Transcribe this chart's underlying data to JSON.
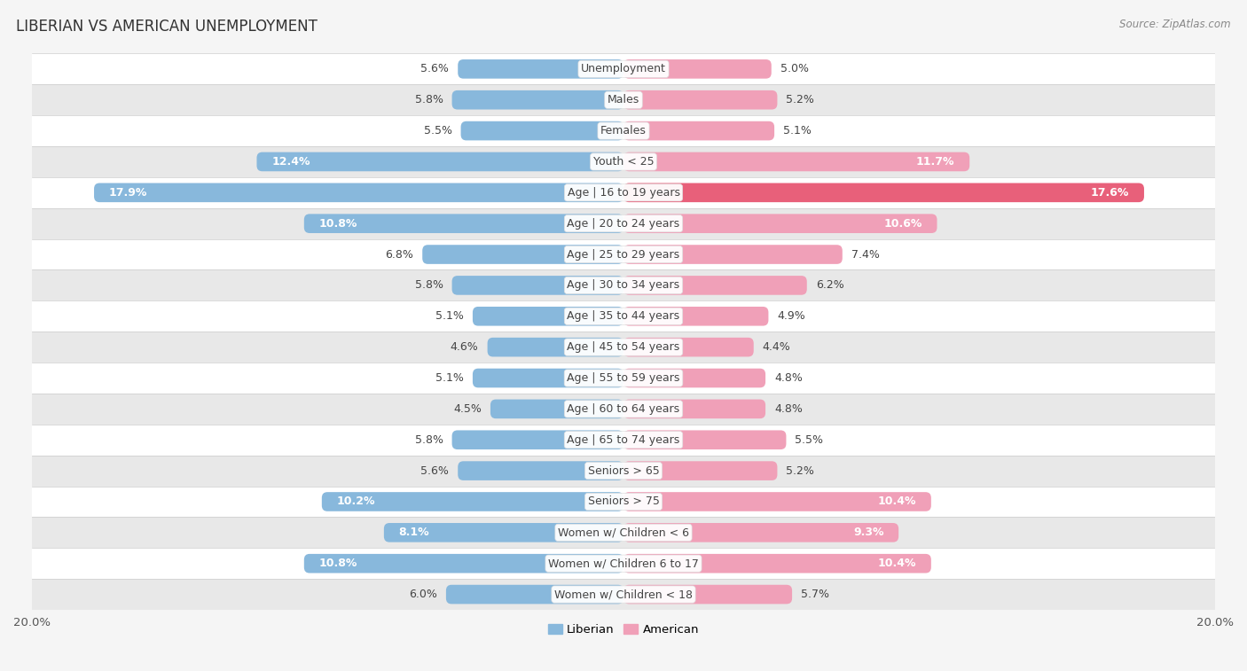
{
  "title": "LIBERIAN VS AMERICAN UNEMPLOYMENT",
  "source": "Source: ZipAtlas.com",
  "categories": [
    "Unemployment",
    "Males",
    "Females",
    "Youth < 25",
    "Age | 16 to 19 years",
    "Age | 20 to 24 years",
    "Age | 25 to 29 years",
    "Age | 30 to 34 years",
    "Age | 35 to 44 years",
    "Age | 45 to 54 years",
    "Age | 55 to 59 years",
    "Age | 60 to 64 years",
    "Age | 65 to 74 years",
    "Seniors > 65",
    "Seniors > 75",
    "Women w/ Children < 6",
    "Women w/ Children 6 to 17",
    "Women w/ Children < 18"
  ],
  "liberian": [
    5.6,
    5.8,
    5.5,
    12.4,
    17.9,
    10.8,
    6.8,
    5.8,
    5.1,
    4.6,
    5.1,
    4.5,
    5.8,
    5.6,
    10.2,
    8.1,
    10.8,
    6.0
  ],
  "american": [
    5.0,
    5.2,
    5.1,
    11.7,
    17.6,
    10.6,
    7.4,
    6.2,
    4.9,
    4.4,
    4.8,
    4.8,
    5.5,
    5.2,
    10.4,
    9.3,
    10.4,
    5.7
  ],
  "liberian_color": "#88B8DC",
  "american_color": "#F0A0B8",
  "american_highlight_color": "#E8607A",
  "background_color": "#f5f5f5",
  "row_light_color": "#ffffff",
  "row_dark_color": "#e8e8e8",
  "xlim": 20.0,
  "legend_labels": [
    "Liberian",
    "American"
  ],
  "bar_height": 0.62,
  "label_fontsize": 9.0,
  "title_fontsize": 12,
  "source_fontsize": 8.5
}
